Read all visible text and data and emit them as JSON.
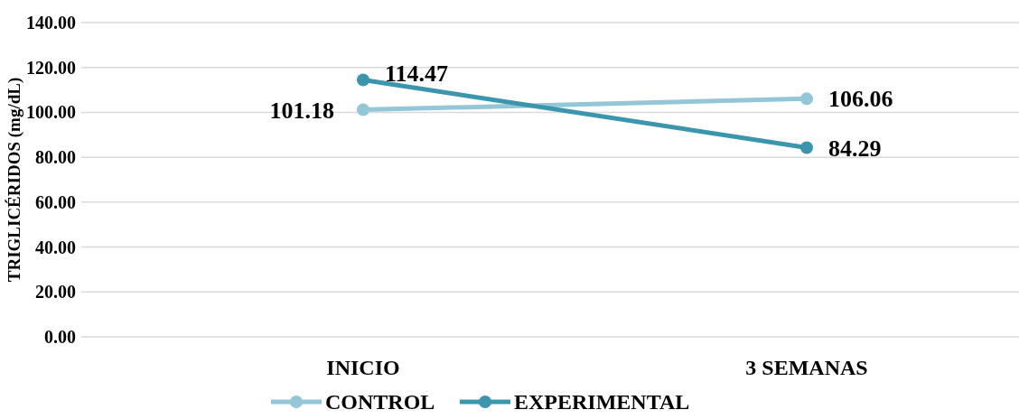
{
  "chart_data": {
    "type": "line",
    "ylabel": "TRIGLICÉRIDOS (mg/dL)",
    "categories": [
      "INICIO",
      "3 SEMANAS"
    ],
    "series": [
      {
        "name": "CONTROL",
        "color": "#93c6d6",
        "values": [
          101.18,
          106.06
        ]
      },
      {
        "name": "EXPERIMENTAL",
        "color": "#3b95ac",
        "values": [
          114.47,
          84.29
        ]
      }
    ],
    "ylim": [
      0,
      140
    ],
    "yticks": [
      {
        "value": 0,
        "label": "0.00"
      },
      {
        "value": 20,
        "label": "20.00"
      },
      {
        "value": 40,
        "label": "40.00"
      },
      {
        "value": 60,
        "label": "60.00"
      },
      {
        "value": 80,
        "label": "80.00"
      },
      {
        "value": 100,
        "label": "100.00"
      },
      {
        "value": 120,
        "label": "120.00"
      },
      {
        "value": 140,
        "label": "140.00"
      }
    ],
    "grid": "y",
    "legend": "bottom",
    "marker": "circle",
    "line_style": "solid",
    "data_labels": true
  }
}
